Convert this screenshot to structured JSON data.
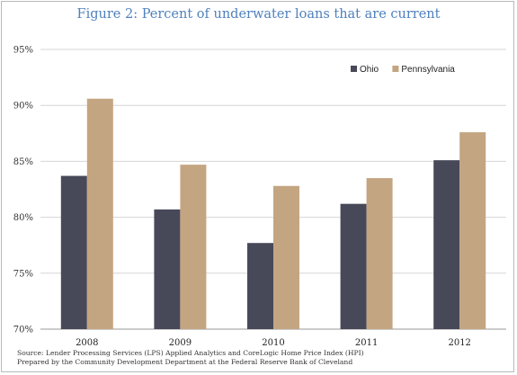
{
  "title": "Figure 2: Percent of underwater loans that are current",
  "source_lines": [
    "Source: Lender Processing Services (LPS) Applied Analytics and CoreLogic Home Price Index (HPI)",
    "Prepared by the Community Development Department at the Federal Reserve Bank of Cleveland"
  ],
  "chart_data": {
    "type": "bar",
    "title": "Figure 2: Percent of underwater loans that are current",
    "categories": [
      "2008",
      "2009",
      "2010",
      "2011",
      "2012"
    ],
    "series": [
      {
        "name": "Ohio",
        "color": "#474959",
        "values": [
          83.7,
          80.7,
          77.7,
          81.2,
          85.1
        ]
      },
      {
        "name": "Pennsylvania",
        "color": "#c4a582",
        "values": [
          90.6,
          84.7,
          82.8,
          83.5,
          87.6
        ]
      }
    ],
    "ylim": [
      70,
      95
    ],
    "yticks": [
      70,
      75,
      80,
      85,
      90,
      95
    ],
    "ytick_labels": [
      "70%",
      "75%",
      "80%",
      "85%",
      "90%",
      "95%"
    ],
    "grid": true,
    "legend_position": "top-right",
    "xlabel": "",
    "ylabel": ""
  }
}
